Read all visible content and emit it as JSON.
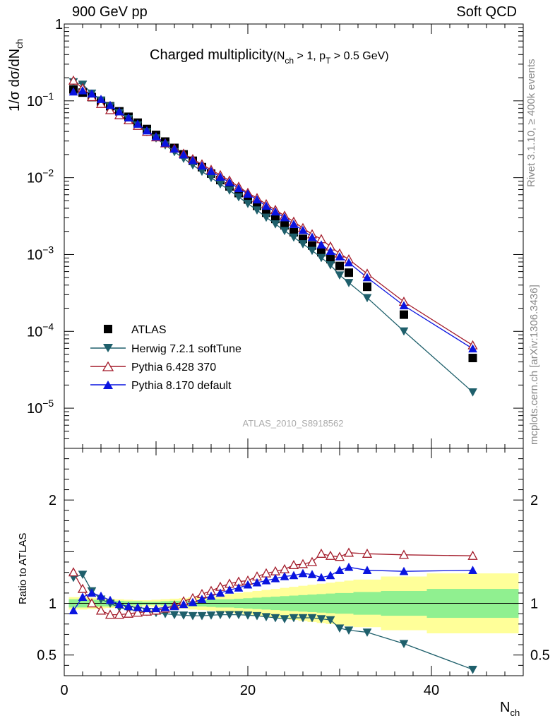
{
  "header": {
    "energy": "900 GeV pp",
    "process": "Soft QCD",
    "title_main": "Charged multiplicity",
    "title_cut_open": "(N",
    "title_cut_sub1": "ch",
    "title_cut_mid": " > 1, p",
    "title_cut_sub2": "T",
    "title_cut_close": " > 0.5 GeV)",
    "analysis_id": "ATLAS_2010_S8918562",
    "rivet_label": "Rivet 3.1.10, ≥ 400k events",
    "mcplots_label": "mcplots.cern.ch [arXiv:1306.3436]"
  },
  "axes": {
    "y_main_label": "1/σ dσ/dN",
    "y_main_label_sub": "ch",
    "y_ratio_label": "Ratio to ATLAS",
    "x_label": "N",
    "x_label_sub": "ch"
  },
  "colors": {
    "herwig": "#1e5f6b",
    "pythia6": "#a31b2a",
    "pythia8": "#0a14e0",
    "band_inner": "#90f090",
    "band_outer": "#ffff99"
  },
  "chart_data": {
    "type": "scatter",
    "xlim": [
      0,
      50
    ],
    "x_ticks": [
      0,
      20,
      40
    ],
    "main": {
      "yscale": "log",
      "ylim": [
        3e-06,
        1
      ],
      "y_ticks": [
        {
          "value": 1,
          "label": "1"
        },
        {
          "value": 0.1,
          "label": "10",
          "exp": "−1"
        },
        {
          "value": 0.01,
          "label": "10",
          "exp": "−2"
        },
        {
          "value": 0.001,
          "label": "10",
          "exp": "−3"
        },
        {
          "value": 0.0001,
          "label": "10",
          "exp": "−4"
        },
        {
          "value": 1e-05,
          "label": "10",
          "exp": "−5"
        }
      ]
    },
    "ratio": {
      "ylim": [
        0.3,
        2.5
      ],
      "y_ticks": [
        {
          "value": 0.5,
          "label": "0.5"
        },
        {
          "value": 1,
          "label": "1"
        },
        {
          "value": 2,
          "label": "2"
        }
      ]
    },
    "x": [
      1,
      2,
      3,
      4,
      5,
      6,
      7,
      8,
      9,
      10,
      11,
      12,
      13,
      14,
      15,
      16,
      17,
      18,
      19,
      20,
      21,
      22,
      23,
      24,
      25,
      26,
      27,
      28,
      29,
      30,
      31,
      33,
      37,
      44.5
    ],
    "x_edges": [
      0.5,
      1.5,
      2.5,
      3.5,
      4.5,
      5.5,
      6.5,
      7.5,
      8.5,
      9.5,
      10.5,
      11.5,
      12.5,
      13.5,
      14.5,
      15.5,
      16.5,
      17.5,
      18.5,
      19.5,
      20.5,
      21.5,
      22.5,
      23.5,
      24.5,
      25.5,
      26.5,
      27.5,
      28.5,
      29.5,
      30.5,
      31.5,
      34.5,
      39.5,
      49.5
    ],
    "band": {
      "inner": [
        0.04,
        0.04,
        0.035,
        0.03,
        0.03,
        0.025,
        0.02,
        0.02,
        0.015,
        0.015,
        0.02,
        0.025,
        0.025,
        0.03,
        0.03,
        0.035,
        0.04,
        0.04,
        0.045,
        0.05,
        0.055,
        0.06,
        0.065,
        0.07,
        0.075,
        0.08,
        0.085,
        0.09,
        0.095,
        0.1,
        0.1,
        0.11,
        0.12,
        0.14
      ],
      "outer": [
        0.06,
        0.06,
        0.055,
        0.05,
        0.045,
        0.04,
        0.035,
        0.03,
        0.03,
        0.035,
        0.04,
        0.045,
        0.05,
        0.06,
        0.065,
        0.07,
        0.08,
        0.09,
        0.1,
        0.11,
        0.12,
        0.13,
        0.14,
        0.15,
        0.16,
        0.17,
        0.18,
        0.19,
        0.2,
        0.21,
        0.22,
        0.23,
        0.26,
        0.29
      ]
    },
    "series": [
      {
        "name": "ATLAS",
        "marker": "square",
        "color": "#000000",
        "values": [
          0.141,
          0.128,
          0.112,
          0.098,
          0.085,
          0.073,
          0.062,
          0.052,
          0.043,
          0.036,
          0.0295,
          0.0244,
          0.0201,
          0.0166,
          0.0137,
          0.0113,
          0.0093,
          0.0077,
          0.0063,
          0.0052,
          0.0043,
          0.0035,
          0.0029,
          0.0024,
          0.00195,
          0.0016,
          0.00131,
          0.00107,
          0.00087,
          0.00071,
          0.00058,
          0.00038,
          0.000165,
          4.5e-05
        ]
      },
      {
        "name": "Herwig 7.2.1 softTune",
        "marker": "triangle-down",
        "color": "#1e5f6b",
        "ratio": [
          1.25,
          1.28,
          1.12,
          1.04,
          1.0,
          0.96,
          0.94,
          0.93,
          0.92,
          0.91,
          0.9,
          0.89,
          0.885,
          0.88,
          0.88,
          0.885,
          0.89,
          0.89,
          0.89,
          0.885,
          0.88,
          0.87,
          0.86,
          0.85,
          0.86,
          0.86,
          0.86,
          0.85,
          0.84,
          0.76,
          0.74,
          0.72,
          0.61,
          0.36
        ]
      },
      {
        "name": "Pythia 6.428 370",
        "marker": "triangle-up-open",
        "color": "#a31b2a",
        "ratio": [
          1.3,
          1.14,
          1.0,
          0.93,
          0.89,
          0.89,
          0.9,
          0.91,
          0.92,
          0.93,
          0.95,
          0.98,
          1.02,
          1.05,
          1.09,
          1.12,
          1.16,
          1.19,
          1.21,
          1.22,
          1.26,
          1.29,
          1.31,
          1.33,
          1.37,
          1.38,
          1.4,
          1.48,
          1.46,
          1.45,
          1.49,
          1.48,
          1.47,
          1.46
        ]
      },
      {
        "name": "Pythia 8.170 default",
        "marker": "triangle-up",
        "color": "#0a14e0",
        "ratio": [
          0.93,
          1.06,
          1.1,
          1.07,
          1.03,
          0.99,
          0.97,
          0.96,
          0.95,
          0.95,
          0.96,
          0.97,
          0.99,
          1.01,
          1.04,
          1.07,
          1.1,
          1.13,
          1.15,
          1.18,
          1.2,
          1.22,
          1.24,
          1.26,
          1.27,
          1.29,
          1.28,
          1.25,
          1.27,
          1.32,
          1.35,
          1.32,
          1.31,
          1.32
        ]
      }
    ]
  }
}
